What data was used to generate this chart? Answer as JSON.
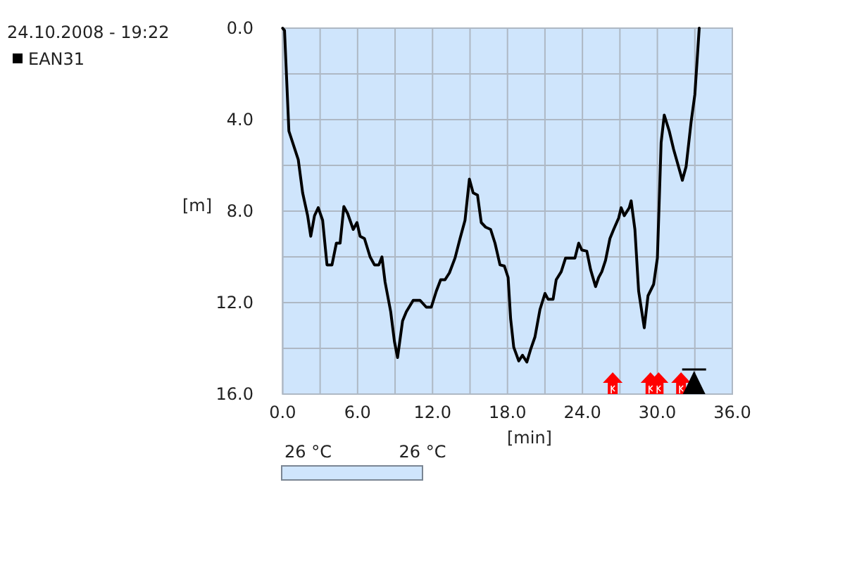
{
  "chart_data": {
    "type": "line",
    "title": "24.10.2008 - 19:22",
    "xlabel": "[min]",
    "ylabel": "[m]",
    "x": [
      0,
      0.15,
      0.5,
      1.25,
      1.6,
      2.0,
      2.25,
      2.55,
      2.85,
      3.2,
      3.55,
      3.95,
      4.3,
      4.6,
      4.9,
      5.2,
      5.65,
      5.95,
      6.2,
      6.55,
      7.0,
      7.35,
      7.7,
      7.95,
      8.2,
      8.65,
      8.95,
      9.2,
      9.6,
      9.9,
      10.45,
      11.0,
      11.5,
      11.9,
      12.3,
      12.65,
      13.0,
      13.35,
      13.8,
      14.2,
      14.6,
      14.95,
      15.25,
      15.6,
      15.9,
      16.25,
      16.65,
      17.0,
      17.4,
      17.75,
      18.05,
      18.25,
      18.5,
      18.9,
      19.2,
      19.55,
      19.85,
      20.2,
      20.6,
      21.0,
      21.25,
      21.65,
      21.9,
      22.3,
      22.65,
      23.4,
      23.7,
      23.95,
      24.35,
      24.65,
      25.05,
      25.3,
      25.55,
      25.85,
      26.2,
      26.5,
      26.9,
      27.1,
      27.35,
      27.75,
      27.9,
      28.2,
      28.5,
      28.95,
      29.25,
      29.7,
      30.0,
      30.3,
      30.55,
      30.95,
      31.3,
      32.0,
      32.3,
      32.7,
      33.0,
      33.35
    ],
    "series": [
      {
        "name": "EAN31",
        "color": "#000000",
        "values": [
          0,
          0.1,
          4.5,
          5.75,
          7.2,
          8.2,
          9.1,
          8.2,
          7.85,
          8.4,
          10.35,
          10.35,
          9.4,
          9.4,
          7.8,
          8.1,
          8.8,
          8.5,
          9.1,
          9.2,
          10.0,
          10.35,
          10.35,
          10.0,
          11.1,
          12.4,
          13.7,
          14.4,
          12.8,
          12.4,
          11.9,
          11.9,
          12.2,
          12.2,
          11.5,
          11.0,
          11.0,
          10.7,
          10.05,
          9.2,
          8.4,
          6.6,
          7.2,
          7.3,
          8.5,
          8.7,
          8.8,
          9.4,
          10.35,
          10.4,
          10.9,
          12.7,
          13.95,
          14.55,
          14.3,
          14.6,
          14.05,
          13.5,
          12.3,
          11.6,
          11.85,
          11.85,
          11.0,
          10.65,
          10.05,
          10.05,
          9.4,
          9.7,
          9.75,
          10.55,
          11.3,
          10.9,
          10.65,
          10.15,
          9.2,
          8.8,
          8.3,
          7.85,
          8.2,
          7.85,
          7.55,
          8.8,
          11.5,
          13.1,
          11.7,
          11.2,
          10.05,
          5.0,
          3.8,
          4.5,
          5.3,
          6.65,
          6.05,
          4.1,
          2.9,
          0
        ]
      }
    ],
    "xlim": [
      0,
      36
    ],
    "xticks": [
      {
        "value": 0,
        "label": "0.0"
      },
      {
        "value": 3,
        "label": null
      },
      {
        "value": 6,
        "label": "6.0"
      },
      {
        "value": 9,
        "label": null
      },
      {
        "value": 12,
        "label": "12.0"
      },
      {
        "value": 15,
        "label": null
      },
      {
        "value": 18,
        "label": "18.0"
      },
      {
        "value": 21,
        "label": null
      },
      {
        "value": 24,
        "label": "24.0"
      },
      {
        "value": 27,
        "label": null
      },
      {
        "value": 30,
        "label": "30.0"
      },
      {
        "value": 33,
        "label": null
      },
      {
        "value": 36,
        "label": "36.0"
      }
    ],
    "ylim": [
      16,
      0
    ],
    "yticks": [
      {
        "value": 0,
        "label": "0.0"
      },
      {
        "value": 2,
        "label": null
      },
      {
        "value": 4,
        "label": "4.0"
      },
      {
        "value": 6,
        "label": null
      },
      {
        "value": 8,
        "label": "8.0"
      },
      {
        "value": 10,
        "label": null
      },
      {
        "value": 12,
        "label": "12.0"
      },
      {
        "value": 14,
        "label": null
      },
      {
        "value": 16,
        "label": "16.0"
      }
    ],
    "grid": true,
    "legend": "top left",
    "annotations": [
      "26 °C",
      "26 °C"
    ]
  }
}
